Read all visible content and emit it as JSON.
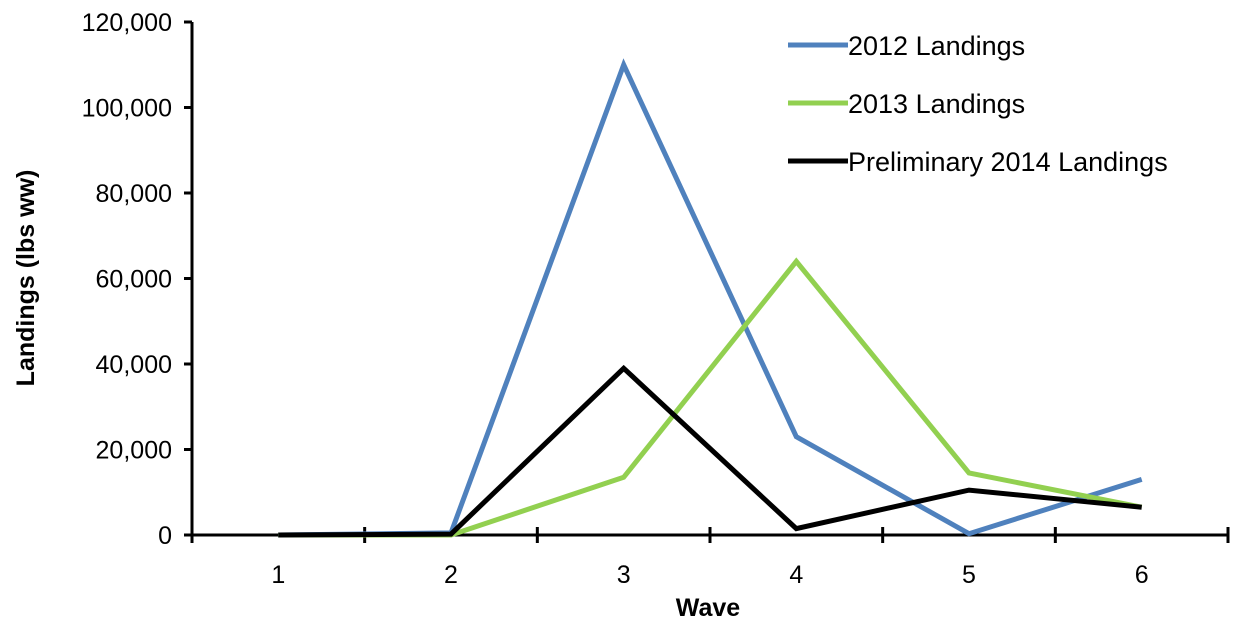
{
  "chart_data": {
    "type": "line",
    "title": "",
    "xlabel": "Wave",
    "ylabel": "Landings (lbs ww)",
    "x": [
      1,
      2,
      3,
      4,
      5,
      6
    ],
    "tick_labels_x": [
      "1",
      "2",
      "3",
      "4",
      "5",
      "6"
    ],
    "tick_labels_y": [
      "0",
      "20,000",
      "40,000",
      "60,000",
      "80,000",
      "100,000",
      "120,000"
    ],
    "ylim": [
      0,
      120000
    ],
    "yticks": [
      0,
      20000,
      40000,
      60000,
      80000,
      100000,
      120000
    ],
    "grid": false,
    "legend_position": "top-right",
    "series": [
      {
        "name": "2012 Landings",
        "color": "#4F81BD",
        "values": [
          0,
          500,
          110000,
          23000,
          300,
          13000
        ]
      },
      {
        "name": "2013 Landings",
        "color": "#92D050",
        "values": [
          0,
          0,
          13500,
          64000,
          14500,
          6500
        ]
      },
      {
        "name": "Preliminary 2014 Landings",
        "color": "#000000",
        "values": [
          0,
          200,
          39000,
          1500,
          10500,
          6500
        ]
      }
    ]
  }
}
